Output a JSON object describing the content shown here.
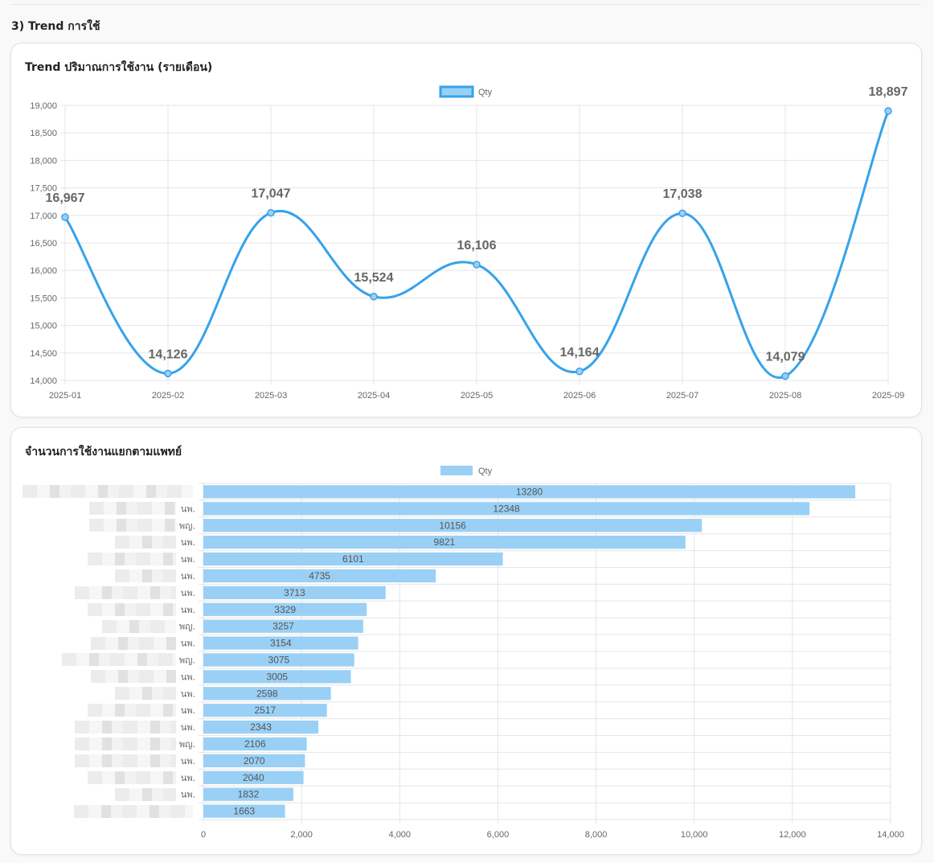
{
  "section": {
    "title": "3) Trend การใช้"
  },
  "trend_card": {
    "title": "Trend ปริมาณการใช้งาน (รายเดือน)"
  },
  "doctor_card": {
    "title": "จำนวนการใช้งานแยกตามแพทย์"
  },
  "colors": {
    "line": "#36a2eb",
    "bar": "#9ad0f5",
    "grid": "#e5e5e5",
    "axis_text": "#666666",
    "label_text": "#666666"
  },
  "chart_data": [
    {
      "type": "line",
      "title": "Trend ปริมาณการใช้งาน (รายเดือน)",
      "legend": {
        "label": "Qty",
        "position": "top"
      },
      "x": [
        "2025-01",
        "2025-02",
        "2025-03",
        "2025-04",
        "2025-05",
        "2025-06",
        "2025-07",
        "2025-08",
        "2025-09"
      ],
      "series": [
        {
          "name": "Qty",
          "values": [
            16967,
            14126,
            17047,
            15524,
            16106,
            14164,
            17038,
            14079,
            18897
          ]
        }
      ],
      "data_labels": [
        "16,967",
        "14,126",
        "17,047",
        "15,524",
        "16,106",
        "14,164",
        "17,038",
        "14,079",
        "18,897"
      ],
      "ylim": [
        14000,
        19000
      ],
      "yticks": [
        14000,
        14500,
        15000,
        15500,
        16000,
        16500,
        17000,
        17500,
        18000,
        18500,
        19000
      ],
      "ytick_labels": [
        "14,000",
        "14,500",
        "15,000",
        "15,500",
        "16,000",
        "16,500",
        "17,000",
        "17,500",
        "18,000",
        "18,500",
        "19,000"
      ],
      "grid": true
    },
    {
      "type": "bar",
      "orientation": "horizontal",
      "title": "จำนวนการใช้งานแยกตามแพทย์",
      "legend": {
        "label": "Qty",
        "position": "top"
      },
      "categories": [
        "",
        "นพ.",
        "พญ.",
        "นพ.",
        "นพ.",
        "นพ.",
        "นพ.",
        "นพ.",
        "พญ.",
        "นพ.",
        "พญ.",
        "นพ.",
        "นพ.",
        "นพ.",
        "นพ.",
        "พญ.",
        "นพ.",
        "นพ.",
        "นพ.",
        ""
      ],
      "series": [
        {
          "name": "Qty",
          "values": [
            13280,
            12348,
            10156,
            9821,
            6101,
            4735,
            3713,
            3329,
            3257,
            3154,
            3075,
            3005,
            2598,
            2517,
            2343,
            2106,
            2070,
            2040,
            1832,
            1663
          ]
        }
      ],
      "xlim": [
        0,
        14000
      ],
      "xticks": [
        0,
        2000,
        4000,
        6000,
        8000,
        10000,
        12000,
        14000
      ],
      "xtick_labels": [
        "0",
        "2,000",
        "4,000",
        "6,000",
        "8,000",
        "10,000",
        "12,000",
        "14,000"
      ],
      "grid": true
    }
  ]
}
